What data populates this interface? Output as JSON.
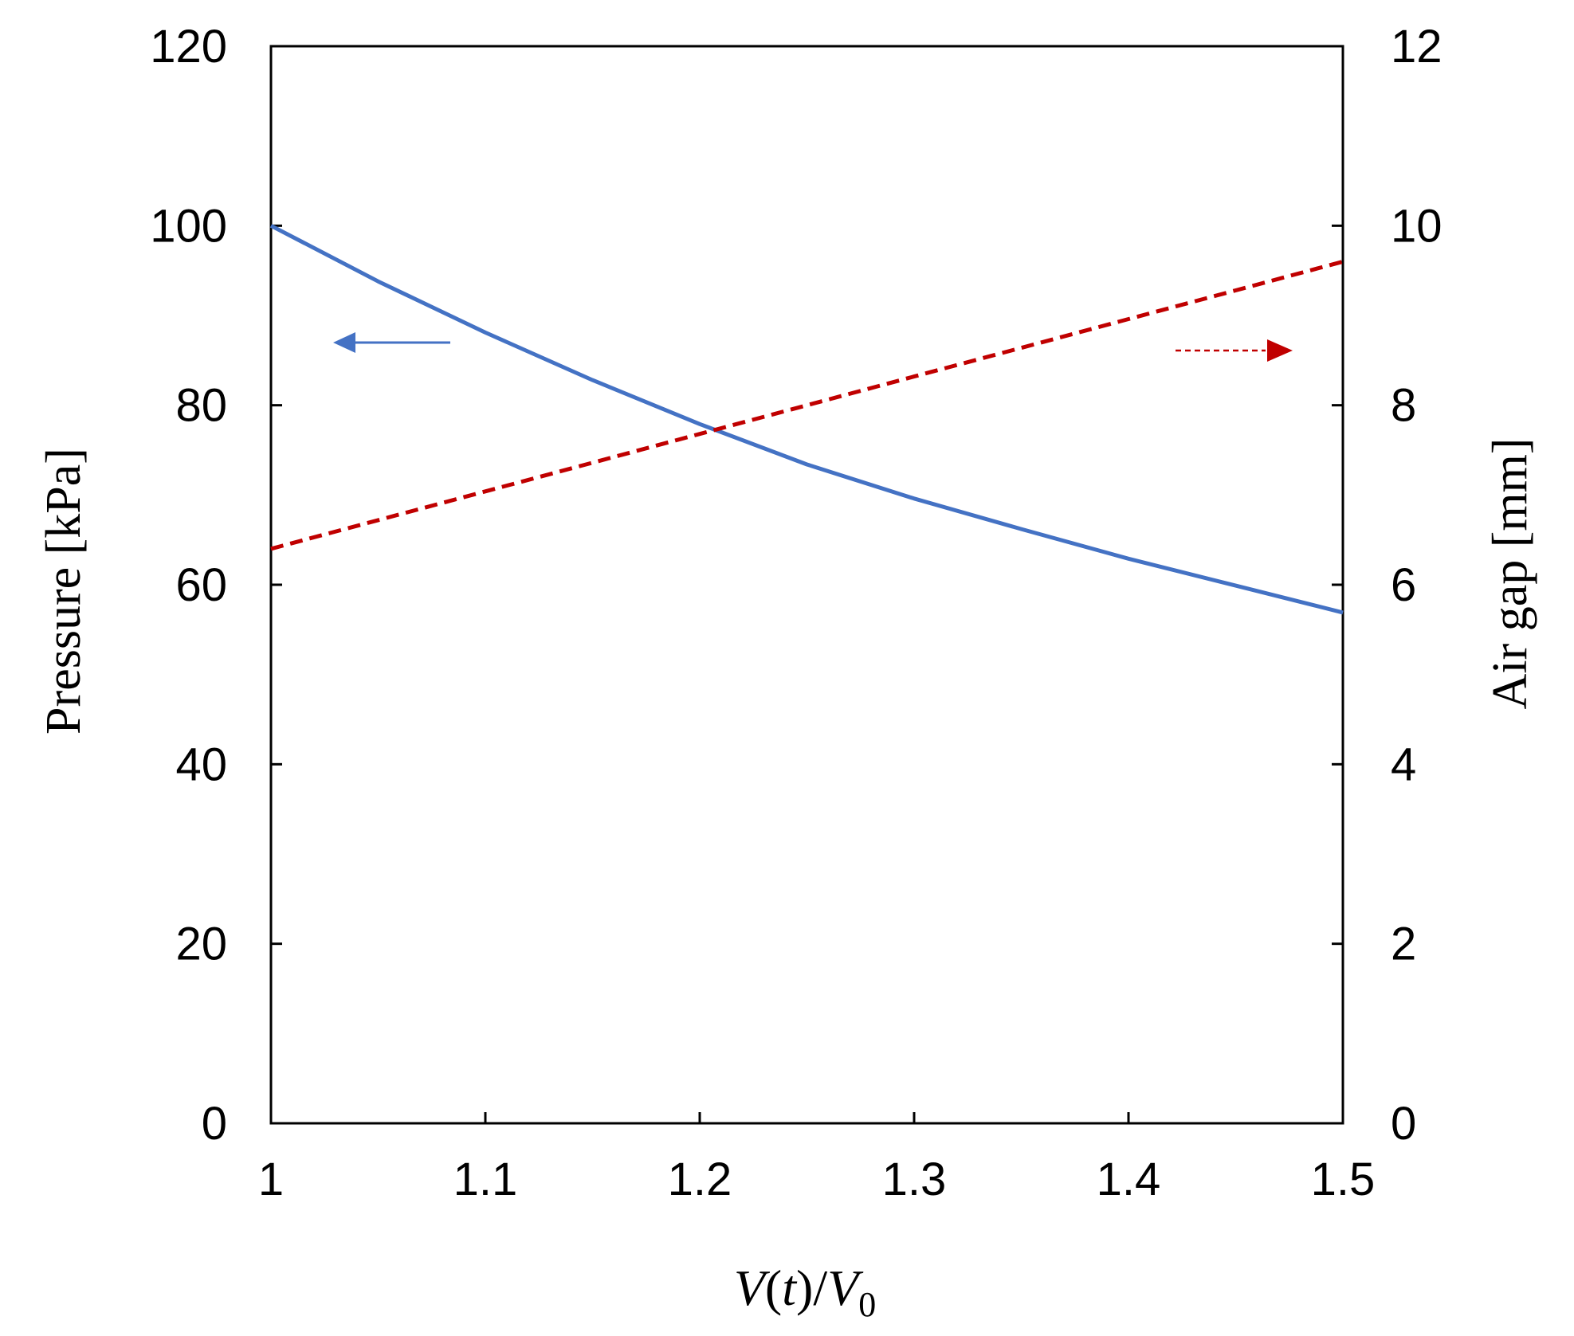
{
  "chart_data": {
    "type": "line",
    "x": [
      1.0,
      1.05,
      1.1,
      1.15,
      1.2,
      1.25,
      1.3,
      1.35,
      1.4,
      1.45,
      1.5
    ],
    "series": [
      {
        "axis": "left",
        "color": "#4472c4",
        "style": "solid",
        "values": [
          100.0,
          93.8,
          88.1,
          82.8,
          77.9,
          73.4,
          69.6,
          66.2,
          62.9,
          59.9,
          56.9
        ]
      },
      {
        "axis": "right",
        "color": "#c00000",
        "style": "dashed",
        "values": [
          6.4,
          6.72,
          7.04,
          7.36,
          7.68,
          8.0,
          8.32,
          8.64,
          8.96,
          9.28,
          9.6
        ]
      }
    ],
    "xlabel": {
      "v1": "V",
      "open": "(",
      "t": "t",
      "close": ")/",
      "v2": "V",
      "sub": "0"
    },
    "ylabel_left": "Pressure [kPa]",
    "ylabel_right": "Air gap [mm]",
    "xlim": [
      1,
      1.5
    ],
    "ylim_left": [
      0,
      120
    ],
    "ylim_right": [
      0,
      12
    ],
    "x_ticks": [
      "1",
      "1.1",
      "1.2",
      "1.3",
      "1.4",
      "1.5"
    ],
    "y_ticks_left": [
      "0",
      "20",
      "40",
      "60",
      "80",
      "100",
      "120"
    ],
    "y_ticks_right": [
      "0",
      "2",
      "4",
      "6",
      "8",
      "10",
      "12"
    ],
    "grid": false,
    "annotations": [
      {
        "name": "left-axis-arrow",
        "direction": "left",
        "color": "#4472c4",
        "style": "solid"
      },
      {
        "name": "right-axis-arrow",
        "direction": "right",
        "color": "#c00000",
        "style": "dashed"
      }
    ]
  }
}
